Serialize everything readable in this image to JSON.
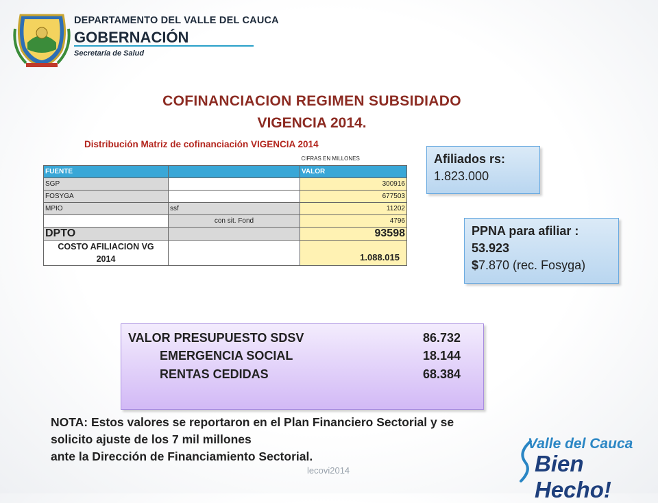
{
  "header": {
    "org_line1": "DEPARTAMENTO DEL VALLE DEL CAUCA",
    "org_line2": "GOBERNACIÓN",
    "org_line3": "Secretaría de Salud",
    "logo_icon": "coat-of-arms-icon"
  },
  "title": {
    "line1": "COFINANCIACION REGIMEN SUBSIDIADO",
    "line2": "VIGENCIA 2014.",
    "subtitle": "Distribución Matriz de cofinanciación VIGENCIA 2014"
  },
  "table": {
    "units_note": "CIFRAS EN MILLONES",
    "headers": {
      "fuente": "FUENTE",
      "valor": "VALOR"
    },
    "rows": [
      {
        "fuente": "SGP",
        "sub": "",
        "valor": "300916"
      },
      {
        "fuente": "FOSYGA",
        "sub": "",
        "valor": "677503"
      },
      {
        "fuente": "MPIO",
        "sub": "ssf",
        "valor": "11202"
      },
      {
        "fuente": "",
        "sub": "con sit. Fond",
        "valor": "4796"
      }
    ],
    "dpto": {
      "label": "DPTO",
      "valor": "93598"
    },
    "costo": {
      "label_line1": "COSTO AFILIACION VG",
      "label_line2": "2014",
      "valor": "1.088.015"
    }
  },
  "afiliados": {
    "label": "Afiliados rs:",
    "value": "1.823.000"
  },
  "ppna": {
    "line1": "PPNA para afiliar :",
    "line2": "53.923",
    "line3_symbol": "$",
    "line3_rest": "7.870 (rec. Fosyga)"
  },
  "budget": {
    "rows": [
      {
        "label": "VALOR PRESUPUESTO SDSV",
        "value": "86.732"
      },
      {
        "label": "EMERGENCIA SOCIAL",
        "value": "18.144"
      },
      {
        "label": "RENTAS CEDIDAS",
        "value": "68.384"
      }
    ]
  },
  "nota": {
    "line1": "NOTA:  Estos valores se reportaron en el Plan Financiero Sectorial y se",
    "line2": "solicito ajuste  de los 7 mil millones",
    "line3": "ante la Dirección de Financiamiento Sectorial."
  },
  "footer": {
    "text": "lecovi2014"
  },
  "brand": {
    "line1": "Valle del Cauca",
    "line2": "Bien Hecho!"
  },
  "colors": {
    "title": "#8c2b22",
    "subtitle": "#b3261e",
    "table_header": "#39a7d7",
    "brand_blue": "#1e3f7c"
  }
}
